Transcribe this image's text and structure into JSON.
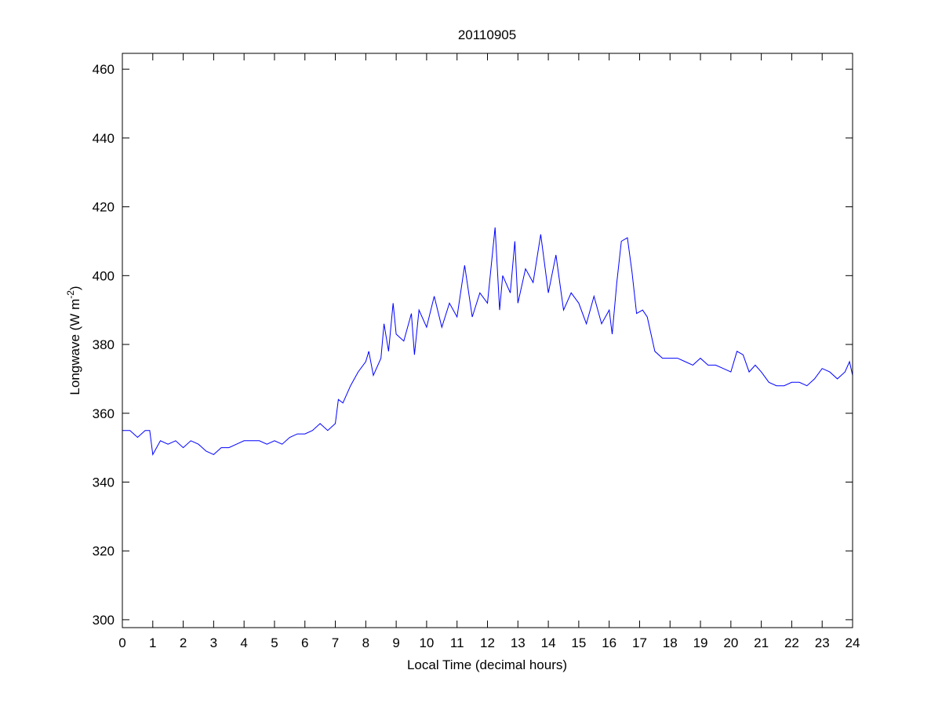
{
  "chart_data": {
    "type": "line",
    "title": "20110905",
    "xlabel": "Local Time (decimal hours)",
    "ylabel": {
      "text": "Longwave (W m",
      "sup": "-2",
      "suffix": ")"
    },
    "xlim": [
      0,
      24
    ],
    "ylim": [
      297.7,
      464.6
    ],
    "xticks": [
      0,
      1,
      2,
      3,
      4,
      5,
      6,
      7,
      8,
      9,
      10,
      11,
      12,
      13,
      14,
      15,
      16,
      17,
      18,
      19,
      20,
      21,
      22,
      23,
      24
    ],
    "yticks": [
      300,
      320,
      340,
      360,
      380,
      400,
      420,
      440,
      460
    ],
    "grid": false,
    "series": [
      {
        "name": "Longwave",
        "color": "#0000ff",
        "x": [
          0,
          0.25,
          0.5,
          0.75,
          0.9,
          1.0,
          1.25,
          1.5,
          1.75,
          2,
          2.25,
          2.5,
          2.75,
          3,
          3.25,
          3.5,
          3.75,
          4,
          4.25,
          4.5,
          4.75,
          5,
          5.25,
          5.5,
          5.75,
          6,
          6.25,
          6.5,
          6.75,
          7,
          7.1,
          7.25,
          7.5,
          7.75,
          8,
          8.1,
          8.25,
          8.5,
          8.6,
          8.75,
          8.9,
          9,
          9.25,
          9.5,
          9.6,
          9.75,
          10,
          10.25,
          10.5,
          10.75,
          11,
          11.25,
          11.5,
          11.75,
          12,
          12.25,
          12.4,
          12.5,
          12.75,
          12.9,
          13,
          13.25,
          13.5,
          13.75,
          14,
          14.25,
          14.5,
          14.75,
          15,
          15.25,
          15.5,
          15.75,
          16,
          16.1,
          16.25,
          16.4,
          16.6,
          16.75,
          16.9,
          17.1,
          17.25,
          17.5,
          17.75,
          18,
          18.25,
          18.5,
          18.75,
          19,
          19.25,
          19.5,
          19.75,
          20,
          20.2,
          20.4,
          20.6,
          20.8,
          21,
          21.25,
          21.5,
          21.75,
          22,
          22.25,
          22.5,
          22.75,
          23,
          23.25,
          23.5,
          23.75,
          23.9,
          24
        ],
        "y": [
          355,
          355,
          353,
          355,
          355,
          348,
          352,
          351,
          352,
          350,
          352,
          351,
          349,
          348,
          350,
          350,
          351,
          352,
          352,
          352,
          351,
          352,
          351,
          353,
          354,
          354,
          355,
          357,
          355,
          357,
          364,
          363,
          368,
          372,
          375,
          378,
          371,
          376,
          386,
          378,
          392,
          383,
          381,
          389,
          377,
          390,
          385,
          394,
          385,
          392,
          388,
          403,
          388,
          395,
          392,
          414,
          390,
          400,
          395,
          410,
          392,
          402,
          398,
          412,
          395,
          406,
          390,
          395,
          392,
          386,
          394,
          386,
          390,
          383,
          398,
          410,
          411,
          401,
          389,
          390,
          388,
          378,
          376,
          376,
          376,
          375,
          374,
          376,
          374,
          374,
          373,
          372,
          378,
          377,
          372,
          374,
          372,
          369,
          368,
          368,
          369,
          369,
          368,
          370,
          373,
          372,
          370,
          372,
          375,
          371
        ]
      }
    ]
  }
}
